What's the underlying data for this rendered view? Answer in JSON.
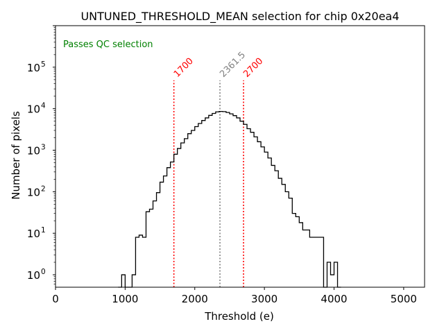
{
  "chart_data": {
    "type": "histogram",
    "title": "UNTUNED_THRESHOLD_MEAN selection for chip 0x20ea4",
    "xlabel": "Threshold (e)",
    "ylabel": "Number of pixels",
    "xlim": [
      0,
      5300
    ],
    "ylim_log10": [
      -0.3,
      1000000.0
    ],
    "yscale": "log",
    "x_ticks": [
      0,
      1000,
      2000,
      3000,
      4000,
      5000
    ],
    "x_tick_labels": [
      "0",
      "1000",
      "2000",
      "3000",
      "4000",
      "5000"
    ],
    "y_ticks": [
      1,
      10,
      100,
      1000,
      10000,
      100000
    ],
    "y_tick_bases": [
      "10",
      "10",
      "10",
      "10",
      "10",
      "10"
    ],
    "y_tick_exponents": [
      "0",
      "1",
      "2",
      "3",
      "4",
      "5"
    ],
    "bin_width": 50,
    "bins": [
      [
        900,
        0
      ],
      [
        950,
        1
      ],
      [
        1000,
        0
      ],
      [
        1050,
        0
      ],
      [
        1100,
        1
      ],
      [
        1150,
        8
      ],
      [
        1200,
        9
      ],
      [
        1250,
        8
      ],
      [
        1300,
        33
      ],
      [
        1350,
        38
      ],
      [
        1400,
        60
      ],
      [
        1450,
        95
      ],
      [
        1500,
        170
      ],
      [
        1550,
        240
      ],
      [
        1600,
        380
      ],
      [
        1650,
        520
      ],
      [
        1700,
        800
      ],
      [
        1750,
        1100
      ],
      [
        1800,
        1500
      ],
      [
        1850,
        1900
      ],
      [
        1900,
        2500
      ],
      [
        1950,
        3000
      ],
      [
        2000,
        3700
      ],
      [
        2050,
        4400
      ],
      [
        2100,
        5200
      ],
      [
        2150,
        6000
      ],
      [
        2200,
        6900
      ],
      [
        2250,
        7700
      ],
      [
        2300,
        8400
      ],
      [
        2350,
        8600
      ],
      [
        2400,
        8500
      ],
      [
        2450,
        8100
      ],
      [
        2500,
        7500
      ],
      [
        2550,
        6800
      ],
      [
        2600,
        6000
      ],
      [
        2650,
        5000
      ],
      [
        2700,
        4200
      ],
      [
        2750,
        3300
      ],
      [
        2800,
        2700
      ],
      [
        2850,
        2100
      ],
      [
        2900,
        1600
      ],
      [
        2950,
        1200
      ],
      [
        3000,
        900
      ],
      [
        3050,
        650
      ],
      [
        3100,
        430
      ],
      [
        3150,
        320
      ],
      [
        3200,
        210
      ],
      [
        3250,
        150
      ],
      [
        3300,
        100
      ],
      [
        3350,
        70
      ],
      [
        3400,
        30
      ],
      [
        3450,
        25
      ],
      [
        3500,
        18
      ],
      [
        3550,
        12
      ],
      [
        3600,
        12
      ],
      [
        3650,
        8
      ],
      [
        3700,
        8
      ],
      [
        3750,
        8
      ],
      [
        3800,
        8
      ],
      [
        3850,
        0
      ],
      [
        3900,
        2
      ],
      [
        3950,
        1
      ],
      [
        4000,
        2
      ],
      [
        4050,
        0
      ]
    ],
    "vlines": [
      {
        "x": 1700,
        "label": "1700",
        "color": "#ff0000"
      },
      {
        "x": 2361.5,
        "label": "2361.5",
        "color": "#808080"
      },
      {
        "x": 2700,
        "label": "2700",
        "color": "#ff0000"
      }
    ],
    "annotation": {
      "text": "Passes QC selection",
      "color": "#008000"
    }
  }
}
